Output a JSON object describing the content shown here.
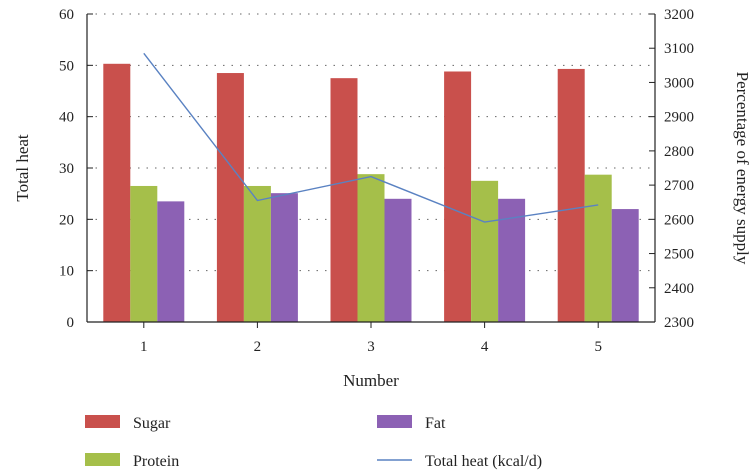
{
  "chart_data": {
    "type": "bar",
    "categories": [
      "1",
      "2",
      "3",
      "4",
      "5"
    ],
    "xlabel": "Number",
    "ylabel": "Total heat",
    "y2label": "Percentage of energy supply",
    "ylim": [
      0,
      60
    ],
    "y2lim": [
      2300,
      3200
    ],
    "yticks": [
      0,
      10,
      20,
      30,
      40,
      50,
      60
    ],
    "y2ticks": [
      2300,
      2400,
      2500,
      2600,
      2700,
      2800,
      2900,
      3000,
      3100,
      3200
    ],
    "grid": "dotted-horizontal",
    "series": [
      {
        "name": "Sugar",
        "type": "bar",
        "axis": "left",
        "color": "#c9504c",
        "values": [
          50.3,
          48.5,
          47.5,
          48.8,
          49.3
        ]
      },
      {
        "name": "Protein",
        "type": "bar",
        "axis": "left",
        "color": "#a5bf4a",
        "values": [
          26.5,
          26.5,
          28.8,
          27.5,
          28.7
        ]
      },
      {
        "name": "Fat",
        "type": "bar",
        "axis": "left",
        "color": "#8c61b4",
        "values": [
          23.5,
          25.1,
          24.0,
          24.0,
          22.0
        ]
      },
      {
        "name": "Total heat (kcal/d)",
        "type": "line",
        "axis": "right",
        "color": "#5a82c2",
        "values": [
          3085,
          2655,
          2725,
          2592,
          2642
        ]
      }
    ],
    "legend_position": "bottom"
  }
}
